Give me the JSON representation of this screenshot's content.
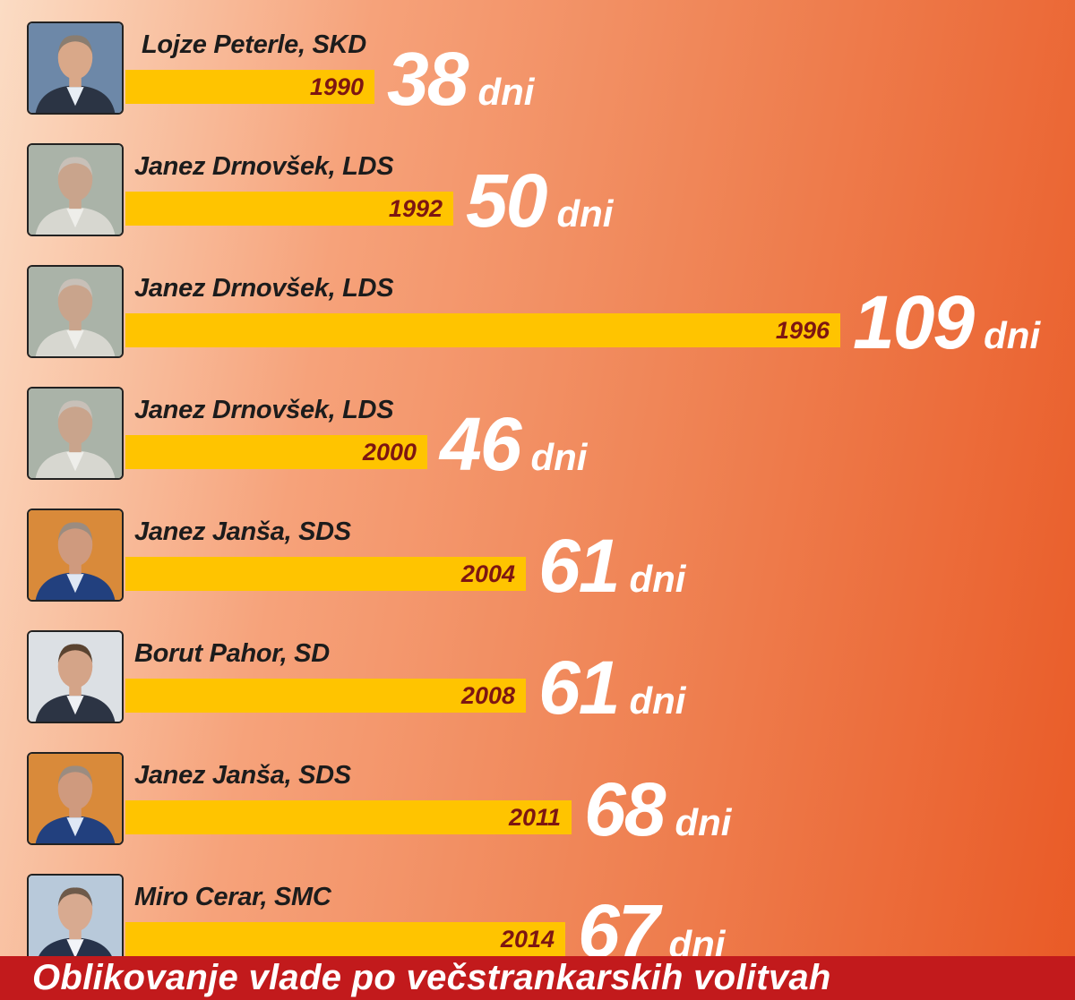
{
  "chart_data": {
    "type": "bar",
    "orientation": "horizontal",
    "title": "Oblikovanje vlade po večstrankarskih volitvah",
    "unit": "dni",
    "rows": [
      {
        "name": "Lojze Peterle, SKD",
        "year": "1990",
        "value": 38,
        "portrait": "peterle"
      },
      {
        "name": "Janez Drnovšek, LDS",
        "year": "1992",
        "value": 50,
        "portrait": "drnovsek"
      },
      {
        "name": "Janez Drnovšek, LDS",
        "year": "1996",
        "value": 109,
        "portrait": "drnovsek"
      },
      {
        "name": "Janez Drnovšek, LDS",
        "year": "2000",
        "value": 46,
        "portrait": "drnovsek"
      },
      {
        "name": "Janez Janša, SDS",
        "year": "2004",
        "value": 61,
        "portrait": "jansa"
      },
      {
        "name": "Borut Pahor, SD",
        "year": "2008",
        "value": 61,
        "portrait": "pahor"
      },
      {
        "name": "Janez Janša, SDS",
        "year": "2011",
        "value": 68,
        "portrait": "jansa"
      },
      {
        "name": "Miro Cerar, SMC",
        "year": "2014",
        "value": 67,
        "portrait": "cerar"
      }
    ],
    "colors": {
      "bar": "#ffc400",
      "year_text": "#7d1612",
      "value_text": "#ffffff",
      "banner": "#c21a1c"
    }
  }
}
